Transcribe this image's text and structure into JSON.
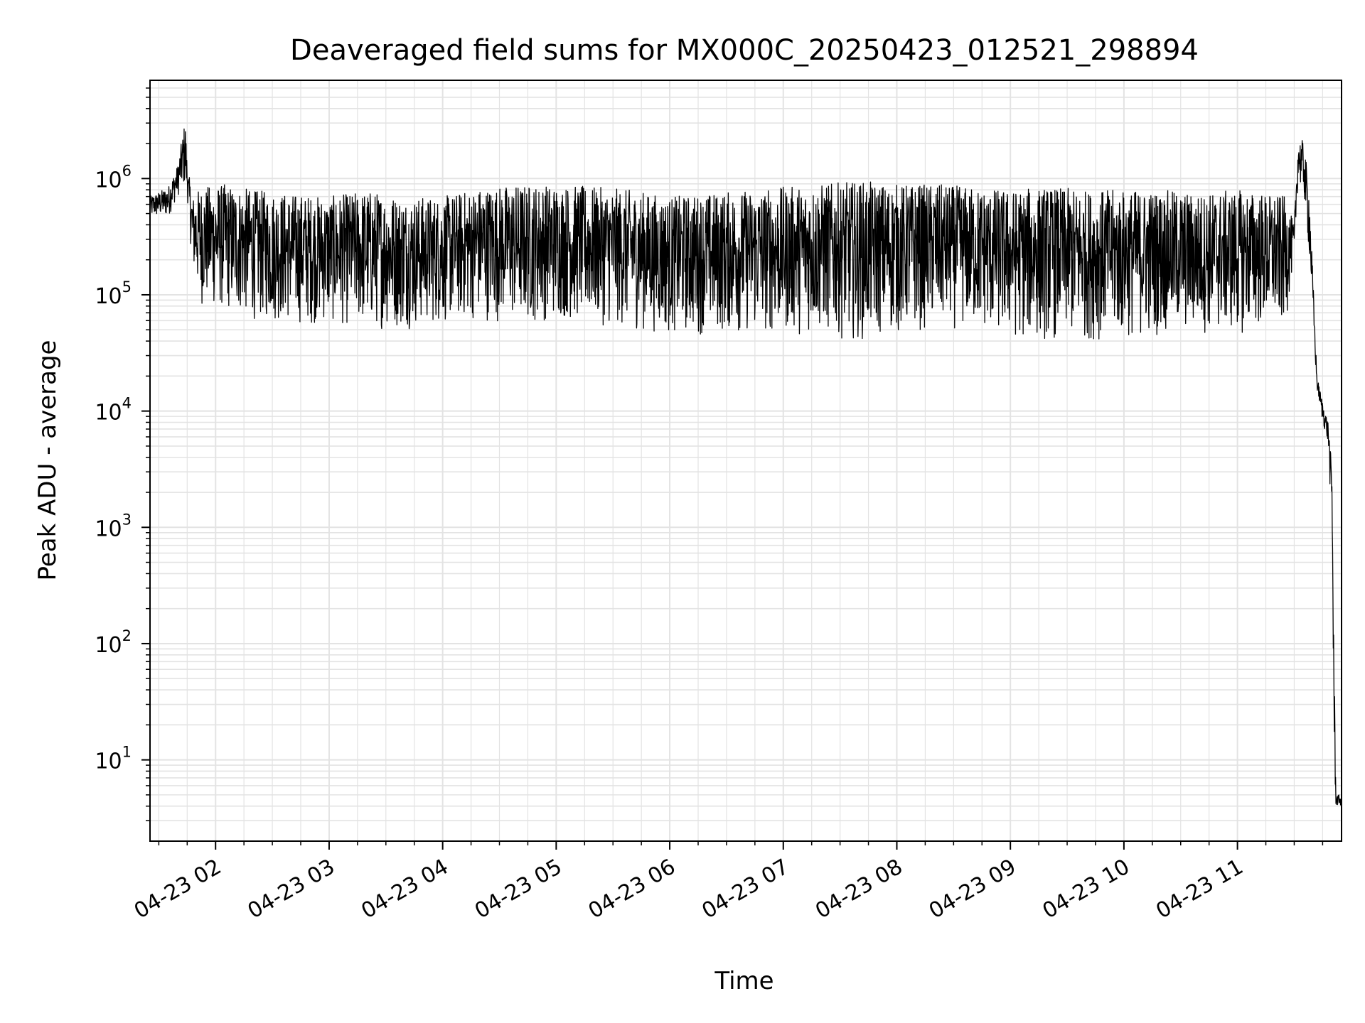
{
  "chart_data": {
    "type": "line",
    "title": "Deaveraged field sums for MX000C_20250423_012521_298894",
    "xlabel": "Time",
    "ylabel": "Peak ADU - average",
    "yscale": "log",
    "ylim": [
      2,
      7000000
    ],
    "xlim": [
      "2025-04-23T01:25:21",
      "2025-04-23T11:55:00"
    ],
    "grid": true,
    "grid_minor": true,
    "line_color": "#000000",
    "grid_color": "#e3e3e3",
    "x_ticks": [
      {
        "t": "2025-04-23T02:00:00",
        "label": "04-23 02"
      },
      {
        "t": "2025-04-23T03:00:00",
        "label": "04-23 03"
      },
      {
        "t": "2025-04-23T04:00:00",
        "label": "04-23 04"
      },
      {
        "t": "2025-04-23T05:00:00",
        "label": "04-23 05"
      },
      {
        "t": "2025-04-23T06:00:00",
        "label": "04-23 06"
      },
      {
        "t": "2025-04-23T07:00:00",
        "label": "04-23 07"
      },
      {
        "t": "2025-04-23T08:00:00",
        "label": "04-23 08"
      },
      {
        "t": "2025-04-23T09:00:00",
        "label": "04-23 09"
      },
      {
        "t": "2025-04-23T10:00:00",
        "label": "04-23 10"
      },
      {
        "t": "2025-04-23T11:00:00",
        "label": "04-23 11"
      }
    ],
    "y_ticks": [
      {
        "value": 10,
        "base": "10",
        "exp": "1"
      },
      {
        "value": 100,
        "base": "10",
        "exp": "2"
      },
      {
        "value": 1000,
        "base": "10",
        "exp": "3"
      },
      {
        "value": 10000,
        "base": "10",
        "exp": "4"
      },
      {
        "value": 100000,
        "base": "10",
        "exp": "5"
      },
      {
        "value": 1000000,
        "base": "10",
        "exp": "6"
      }
    ],
    "series": [
      {
        "x": [
          "2025-04-23T01:25:21",
          "2025-04-23T01:35:00",
          "2025-04-23T01:40:00",
          "2025-04-23T01:44:00",
          "2025-04-23T01:45:00",
          "2025-04-23T01:48:00",
          "2025-04-23T01:52:00",
          "2025-04-23T02:05:00",
          "2025-04-23T02:20:00",
          "2025-04-23T02:40:00",
          "2025-04-23T03:00:00",
          "2025-04-23T03:20:00",
          "2025-04-23T03:40:00",
          "2025-04-23T04:00:00",
          "2025-04-23T04:20:00",
          "2025-04-23T04:40:00",
          "2025-04-23T05:00:00",
          "2025-04-23T05:20:00",
          "2025-04-23T05:40:00",
          "2025-04-23T06:00:00",
          "2025-04-23T06:20:00",
          "2025-04-23T06:40:00",
          "2025-04-23T07:00:00",
          "2025-04-23T07:20:00",
          "2025-04-23T07:40:00",
          "2025-04-23T08:00:00",
          "2025-04-23T08:20:00",
          "2025-04-23T08:40:00",
          "2025-04-23T09:00:00",
          "2025-04-23T09:20:00",
          "2025-04-23T09:40:00",
          "2025-04-23T10:00:00",
          "2025-04-23T10:20:00",
          "2025-04-23T10:40:00",
          "2025-04-23T11:00:00",
          "2025-04-23T11:15:00",
          "2025-04-23T11:25:00",
          "2025-04-23T11:30:00",
          "2025-04-23T11:32:00",
          "2025-04-23T11:35:00",
          "2025-04-23T11:38:00",
          "2025-04-23T11:42:00",
          "2025-04-23T11:45:00",
          "2025-04-23T11:48:00",
          "2025-04-23T11:50:00",
          "2025-04-23T11:51:00",
          "2025-04-23T11:52:00",
          "2025-04-23T11:53:00",
          "2025-04-23T11:55:00"
        ],
        "low": [
          450000,
          460000,
          700000,
          800000,
          700000,
          150000,
          80000,
          70000,
          60000,
          55000,
          55000,
          50000,
          50000,
          55000,
          60000,
          55000,
          60000,
          55000,
          50000,
          45000,
          45000,
          45000,
          45000,
          45000,
          40000,
          45000,
          50000,
          50000,
          40000,
          40000,
          40000,
          40000,
          45000,
          45000,
          45000,
          50000,
          50000,
          200000,
          900000,
          700000,
          200000,
          15000,
          8000,
          5000,
          800,
          10,
          4,
          4,
          4
        ],
        "high": [
          700000,
          850000,
          1300000,
          3300000,
          1300000,
          700000,
          850000,
          900000,
          800000,
          750000,
          700000,
          800000,
          700000,
          700000,
          850000,
          900000,
          900000,
          850000,
          800000,
          700000,
          750000,
          800000,
          850000,
          900000,
          950000,
          900000,
          900000,
          850000,
          800000,
          850000,
          800000,
          800000,
          800000,
          750000,
          800000,
          750000,
          700000,
          400000,
          2200000,
          2100000,
          800000,
          20000,
          12000,
          8000,
          3000,
          100,
          5,
          5,
          5
        ]
      }
    ]
  }
}
